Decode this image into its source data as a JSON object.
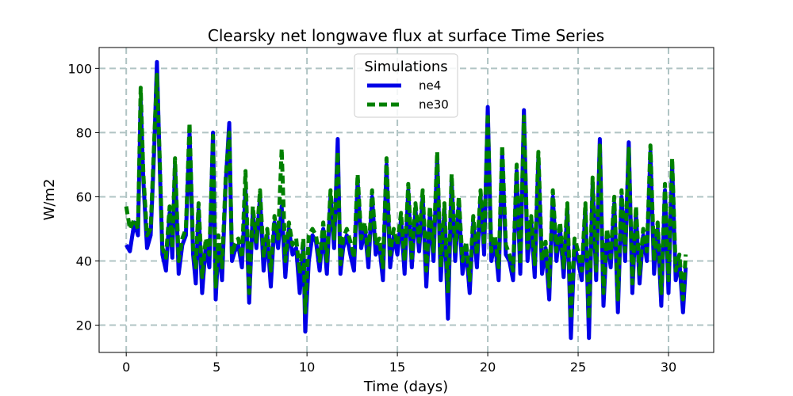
{
  "chart_data": {
    "type": "line",
    "title": "Clearsky net longwave flux at surface Time Series",
    "xlabel": "Time (days)",
    "ylabel": "W/m2",
    "xlim": [
      -1.5,
      32.5
    ],
    "ylim": [
      11.5,
      106.5
    ],
    "x_ticks": [
      0,
      5,
      10,
      15,
      20,
      25,
      30
    ],
    "y_ticks": [
      20,
      40,
      60,
      80,
      100
    ],
    "grid": true,
    "legend": {
      "title": "Simulations",
      "placement": "top-center"
    },
    "series": [
      {
        "name": "ne4",
        "color": "#0000e6",
        "style": "solid",
        "x": [
          0,
          0.2,
          0.45,
          0.65,
          0.8,
          0.95,
          1.15,
          1.35,
          1.55,
          1.7,
          1.85,
          2.0,
          2.2,
          2.4,
          2.55,
          2.7,
          2.9,
          3.1,
          3.3,
          3.5,
          3.7,
          3.85,
          4.0,
          4.2,
          4.4,
          4.6,
          4.8,
          4.95,
          5.1,
          5.3,
          5.5,
          5.7,
          5.85,
          6.0,
          6.2,
          6.4,
          6.6,
          6.8,
          7.0,
          7.2,
          7.4,
          7.6,
          7.8,
          8.0,
          8.2,
          8.4,
          8.6,
          8.8,
          9.0,
          9.2,
          9.4,
          9.6,
          9.8,
          9.9,
          10.1,
          10.3,
          10.5,
          10.7,
          10.9,
          11.1,
          11.3,
          11.5,
          11.7,
          11.85,
          12.0,
          12.2,
          12.4,
          12.6,
          12.8,
          13.0,
          13.2,
          13.4,
          13.6,
          13.8,
          14.0,
          14.2,
          14.4,
          14.6,
          14.8,
          15.0,
          15.2,
          15.4,
          15.6,
          15.8,
          16.0,
          16.2,
          16.4,
          16.6,
          16.8,
          17.0,
          17.2,
          17.4,
          17.6,
          17.8,
          18.0,
          18.2,
          18.4,
          18.6,
          18.8,
          19.0,
          19.2,
          19.4,
          19.6,
          19.8,
          20.0,
          20.2,
          20.4,
          20.6,
          20.8,
          21.0,
          21.2,
          21.4,
          21.6,
          21.8,
          22.0,
          22.2,
          22.4,
          22.6,
          22.8,
          23.0,
          23.2,
          23.4,
          23.6,
          23.8,
          24.0,
          24.2,
          24.4,
          24.6,
          24.8,
          25.0,
          25.2,
          25.4,
          25.6,
          25.8,
          26.0,
          26.2,
          26.4,
          26.6,
          26.8,
          27.0,
          27.2,
          27.4,
          27.6,
          27.8,
          28.0,
          28.2,
          28.4,
          28.6,
          28.8,
          29.0,
          29.2,
          29.4,
          29.6,
          29.8,
          30.0,
          30.2,
          30.4,
          30.6,
          30.8,
          30.95
        ],
        "values": [
          45,
          43,
          52,
          48,
          90,
          65,
          44,
          48,
          75,
          102,
          70,
          42,
          37,
          55,
          41,
          70,
          36,
          45,
          48,
          80,
          42,
          33,
          56,
          30,
          45,
          38,
          80,
          28,
          45,
          34,
          64,
          83,
          40,
          43,
          45,
          38,
          62,
          27,
          55,
          44,
          60,
          37,
          48,
          32,
          52,
          44,
          57,
          35,
          50,
          42,
          44,
          30,
          45,
          18,
          40,
          48,
          46,
          37,
          50,
          36,
          60,
          44,
          78,
          36,
          44,
          48,
          42,
          37,
          65,
          44,
          50,
          38,
          60,
          42,
          45,
          34,
          70,
          38,
          48,
          42,
          53,
          36,
          62,
          38,
          56,
          43,
          60,
          32,
          55,
          40,
          72,
          34,
          56,
          22,
          65,
          40,
          58,
          36,
          44,
          30,
          52,
          38,
          60,
          42,
          88,
          40,
          46,
          34,
          74,
          42,
          40,
          34,
          68,
          36,
          87,
          40,
          52,
          35,
          72,
          36,
          44,
          28,
          60,
          40,
          50,
          35,
          56,
          16,
          45,
          40,
          34,
          56,
          16,
          64,
          34,
          78,
          26,
          48,
          38,
          58,
          24,
          60,
          40,
          77,
          30,
          55,
          33,
          48,
          40,
          74,
          36,
          50,
          26,
          62,
          30,
          70,
          34,
          40,
          24,
          38
        ]
      },
      {
        "name": "ne30",
        "color": "#008000",
        "style": "dashed",
        "x": [
          0,
          0.2,
          0.45,
          0.65,
          0.8,
          0.95,
          1.15,
          1.35,
          1.55,
          1.7,
          1.85,
          2.0,
          2.2,
          2.4,
          2.55,
          2.7,
          2.9,
          3.1,
          3.3,
          3.5,
          3.7,
          3.85,
          4.0,
          4.2,
          4.4,
          4.6,
          4.8,
          4.95,
          5.1,
          5.3,
          5.5,
          5.7,
          5.85,
          6.0,
          6.2,
          6.4,
          6.6,
          6.8,
          7.0,
          7.2,
          7.4,
          7.6,
          7.8,
          8.0,
          8.2,
          8.4,
          8.6,
          8.8,
          9.0,
          9.2,
          9.4,
          9.6,
          9.8,
          9.9,
          10.1,
          10.3,
          10.5,
          10.7,
          10.9,
          11.1,
          11.3,
          11.5,
          11.7,
          11.85,
          12.0,
          12.2,
          12.4,
          12.6,
          12.8,
          13.0,
          13.2,
          13.4,
          13.6,
          13.8,
          14.0,
          14.2,
          14.4,
          14.6,
          14.8,
          15.0,
          15.2,
          15.4,
          15.6,
          15.8,
          16.0,
          16.2,
          16.4,
          16.6,
          16.8,
          17.0,
          17.2,
          17.4,
          17.6,
          17.8,
          18.0,
          18.2,
          18.4,
          18.6,
          18.8,
          19.0,
          19.2,
          19.4,
          19.6,
          19.8,
          20.0,
          20.2,
          20.4,
          20.6,
          20.8,
          21.0,
          21.2,
          21.4,
          21.6,
          21.8,
          22.0,
          22.2,
          22.4,
          22.6,
          22.8,
          23.0,
          23.2,
          23.4,
          23.6,
          23.8,
          24.0,
          24.2,
          24.4,
          24.6,
          24.8,
          25.0,
          25.2,
          25.4,
          25.6,
          25.8,
          26.0,
          26.2,
          26.4,
          26.6,
          26.8,
          27.0,
          27.2,
          27.4,
          27.6,
          27.8,
          28.0,
          28.2,
          28.4,
          28.6,
          28.8,
          29.0,
          29.2,
          29.4,
          29.6,
          29.8,
          30.0,
          30.2,
          30.4,
          30.6,
          30.8,
          30.95
        ],
        "values": [
          57,
          50,
          53,
          50,
          94,
          67,
          48,
          50,
          78,
          98,
          72,
          44,
          41,
          57,
          44,
          72,
          40,
          47,
          50,
          83,
          44,
          38,
          58,
          35,
          47,
          42,
          79,
          32,
          48,
          38,
          66,
          80,
          42,
          45,
          47,
          41,
          68,
          30,
          57,
          46,
          62,
          41,
          50,
          37,
          54,
          47,
          75,
          40,
          52,
          45,
          47,
          36,
          47,
          24,
          48,
          50,
          48,
          40,
          52,
          40,
          62,
          47,
          74,
          39,
          47,
          50,
          46,
          41,
          67,
          47,
          52,
          41,
          62,
          45,
          47,
          38,
          72,
          42,
          50,
          45,
          55,
          40,
          64,
          41,
          58,
          46,
          62,
          37,
          57,
          43,
          74,
          38,
          58,
          30,
          67,
          43,
          60,
          40,
          46,
          34,
          54,
          42,
          62,
          45,
          86,
          43,
          48,
          38,
          76,
          45,
          42,
          37,
          70,
          39,
          85,
          44,
          54,
          39,
          74,
          40,
          46,
          32,
          62,
          43,
          52,
          38,
          58,
          22,
          47,
          43,
          37,
          58,
          22,
          66,
          37,
          76,
          30,
          50,
          41,
          60,
          28,
          62,
          43,
          75,
          33,
          57,
          36,
          50,
          43,
          76,
          40,
          52,
          30,
          64,
          34,
          72,
          37,
          42,
          28,
          42
        ]
      }
    ]
  }
}
